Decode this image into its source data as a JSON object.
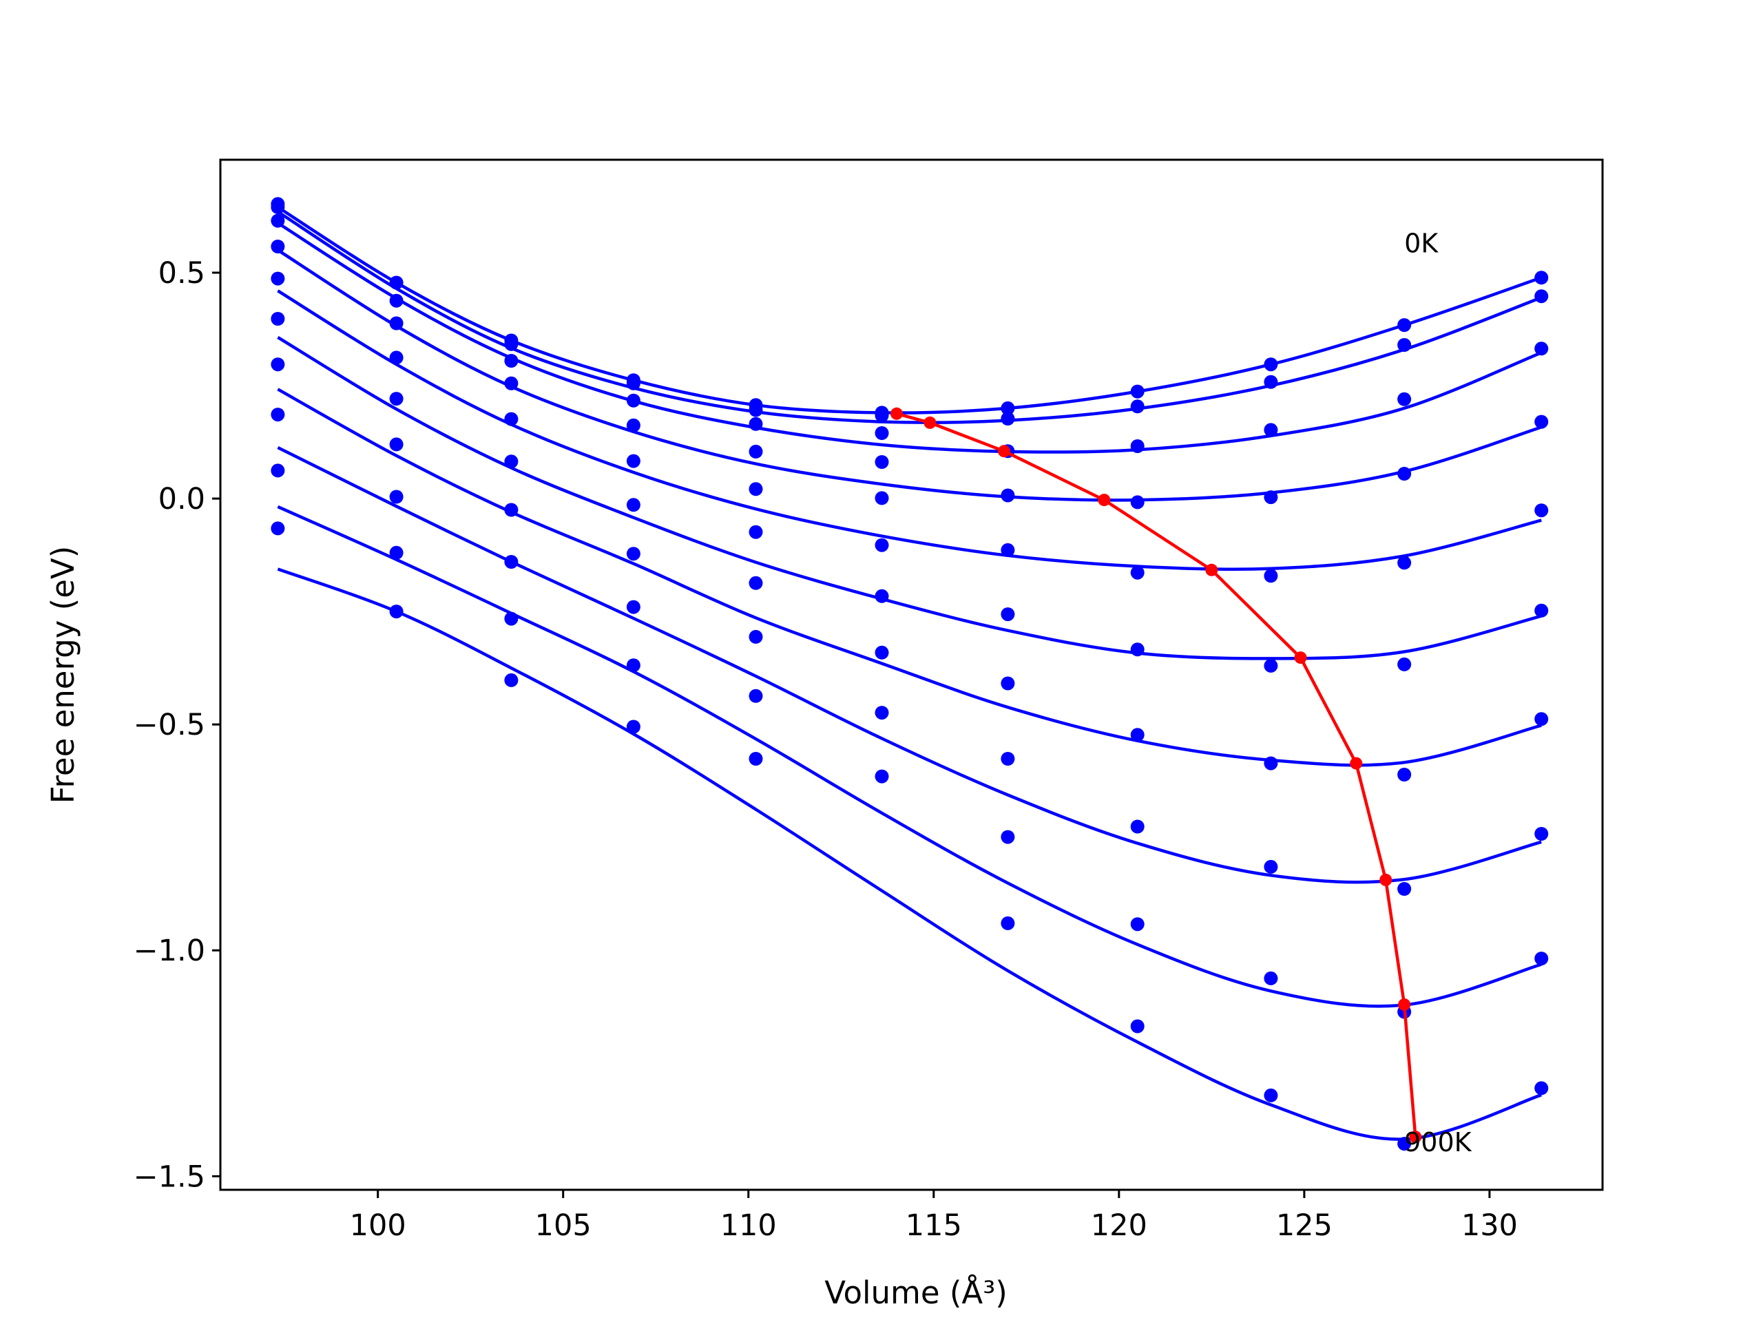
{
  "chart_data": {
    "type": "scatter",
    "xlabel": "Volume (Å³)",
    "ylabel": "Free energy (eV)",
    "xlim": [
      95.75,
      133.05
    ],
    "ylim": [
      -1.53,
      0.75
    ],
    "xticks": [
      100,
      105,
      110,
      115,
      120,
      125,
      130
    ],
    "xtick_labels": [
      "100",
      "105",
      "110",
      "115",
      "120",
      "125",
      "130"
    ],
    "yticks": [
      0.5,
      0.0,
      -0.5,
      -1.0,
      -1.5
    ],
    "ytick_labels": [
      "0.5",
      "0.0",
      "−0.5",
      "−1.0",
      "−1.5"
    ],
    "grid": false,
    "colors": {
      "curves": "#0000ff",
      "points": "#0000ff",
      "minimum_path": "#ff0000"
    },
    "volumes": [
      97.3,
      100.5,
      103.6,
      106.9,
      110.2,
      113.6,
      117.0,
      120.5,
      124.1,
      127.7,
      131.4
    ],
    "series": [
      {
        "points": [
          0.645,
          0.478,
          0.35,
          0.262,
          0.207,
          0.19,
          0.2,
          0.237,
          0.297,
          0.384,
          0.489
        ],
        "fit": [
          0.645,
          0.478,
          0.35,
          0.262,
          0.207,
          0.19,
          0.2,
          0.237,
          0.297,
          0.384,
          0.489
        ]
      },
      {
        "points": [
          0.652,
          0.438,
          0.342,
          0.255,
          0.196,
          0.184,
          0.177,
          0.204,
          0.258,
          0.34,
          0.448
        ],
        "fit": [
          0.635,
          0.465,
          0.333,
          0.245,
          0.192,
          0.17,
          0.173,
          0.199,
          0.25,
          0.33,
          0.445
        ]
      },
      {
        "points": [
          0.615,
          0.388,
          0.305,
          0.217,
          0.165,
          0.145,
          0.105,
          0.116,
          0.152,
          0.22,
          0.332
        ],
        "fit": [
          0.61,
          0.443,
          0.311,
          0.216,
          0.157,
          0.119,
          0.104,
          0.108,
          0.139,
          0.2,
          0.323
        ]
      },
      {
        "points": [
          0.558,
          0.312,
          0.255,
          0.162,
          0.104,
          0.081,
          0.007,
          -0.008,
          0.003,
          0.055,
          0.17
        ],
        "fit": [
          0.55,
          0.382,
          0.248,
          0.148,
          0.077,
          0.032,
          0.004,
          -0.003,
          0.013,
          0.06,
          0.158
        ]
      },
      {
        "points": [
          0.487,
          0.221,
          0.176,
          0.083,
          0.021,
          0.001,
          -0.114,
          -0.164,
          -0.171,
          -0.142,
          -0.026
        ],
        "fit": [
          0.46,
          0.297,
          0.164,
          0.058,
          -0.023,
          -0.083,
          -0.126,
          -0.15,
          -0.155,
          -0.127,
          -0.048
        ]
      },
      {
        "points": [
          0.398,
          0.12,
          0.082,
          -0.014,
          -0.074,
          -0.103,
          -0.256,
          -0.334,
          -0.37,
          -0.367,
          -0.248
        ],
        "fit": [
          0.357,
          0.198,
          0.068,
          -0.042,
          -0.141,
          -0.222,
          -0.292,
          -0.342,
          -0.354,
          -0.339,
          -0.26
        ]
      },
      {
        "points": [
          0.297,
          0.004,
          -0.025,
          -0.122,
          -0.187,
          -0.216,
          -0.409,
          -0.523,
          -0.586,
          -0.611,
          -0.488
        ],
        "fit": [
          0.242,
          0.095,
          -0.03,
          -0.144,
          -0.264,
          -0.365,
          -0.462,
          -0.536,
          -0.579,
          -0.584,
          -0.502
        ]
      },
      {
        "points": [
          0.186,
          -0.12,
          -0.14,
          -0.24,
          -0.306,
          -0.341,
          -0.576,
          -0.726,
          -0.815,
          -0.864,
          -0.742
        ],
        "fit": [
          0.113,
          -0.017,
          -0.14,
          -0.265,
          -0.393,
          -0.531,
          -0.656,
          -0.763,
          -0.834,
          -0.843,
          -0.76
        ]
      },
      {
        "points": [
          0.062,
          -0.25,
          -0.266,
          -0.369,
          -0.437,
          -0.474,
          -0.749,
          -0.942,
          -1.062,
          -1.136,
          -1.018
        ],
        "fit": [
          -0.018,
          -0.135,
          -0.254,
          -0.383,
          -0.532,
          -0.696,
          -0.851,
          -0.987,
          -1.09,
          -1.121,
          -1.031
        ]
      },
      {
        "points": [
          -0.066,
          null,
          -0.402,
          -0.505,
          -0.576,
          -0.615,
          -0.94,
          -1.168,
          -1.321,
          -1.428,
          -1.305
        ],
        "fit": [
          -0.156,
          -0.25,
          -0.375,
          -0.521,
          -0.688,
          -0.868,
          -1.045,
          -1.203,
          -1.342,
          -1.418,
          -1.32
        ]
      }
    ],
    "minimum_path": {
      "x": [
        114.0,
        114.9,
        116.9,
        119.6,
        122.5,
        124.9,
        126.4,
        127.2,
        127.7,
        128.0
      ],
      "y": [
        0.188,
        0.168,
        0.105,
        -0.003,
        -0.158,
        -0.352,
        -0.586,
        -0.844,
        -1.12,
        -1.413
      ]
    },
    "annotations": [
      {
        "text": "0K",
        "x": 127.7,
        "y": 0.545
      },
      {
        "text": "900K",
        "x": 127.7,
        "y": -1.445
      }
    ]
  }
}
